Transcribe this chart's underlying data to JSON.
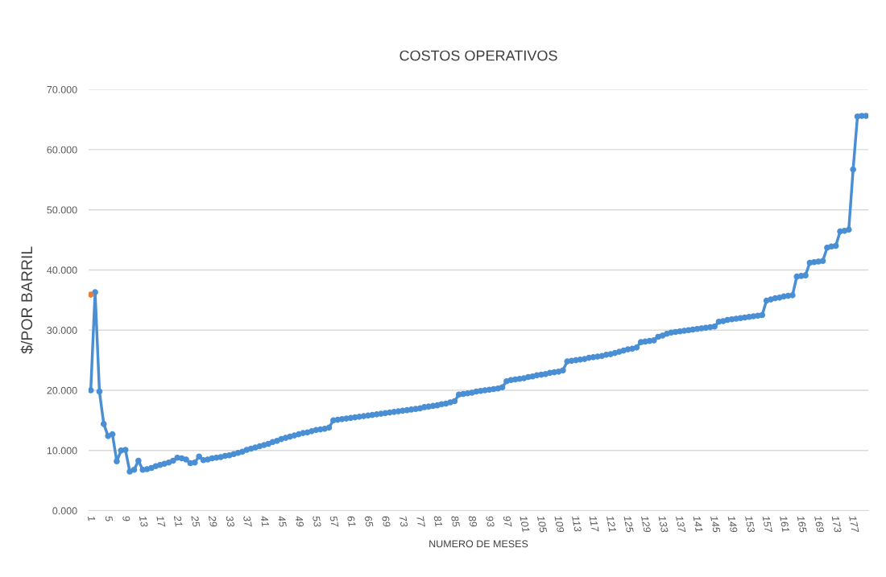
{
  "chart_data": {
    "type": "line",
    "title": "COSTOS OPERATIVOS",
    "xlabel": "NUMERO DE MESES",
    "ylabel": "$/POR BARRIL",
    "categories": [
      "1",
      null,
      null,
      null,
      "5",
      null,
      null,
      null,
      "9",
      null,
      null,
      null,
      "13",
      null,
      null,
      null,
      "17",
      null,
      null,
      null,
      "21",
      null,
      null,
      null,
      "25",
      null,
      null,
      null,
      "29",
      null,
      null,
      null,
      "33",
      null,
      null,
      null,
      "37",
      null,
      null,
      null,
      "41",
      null,
      null,
      null,
      "45",
      null,
      null,
      null,
      "49",
      null,
      null,
      null,
      "53",
      null,
      null,
      null,
      "57",
      null,
      null,
      null,
      "61",
      null,
      null,
      null,
      "65",
      null,
      null,
      null,
      "69",
      null,
      null,
      null,
      "73",
      null,
      null,
      null,
      "77",
      null,
      null,
      null,
      "81",
      null,
      null,
      null,
      "85",
      null,
      null,
      null,
      "89",
      null,
      null,
      null,
      "93",
      null,
      null,
      null,
      "97",
      null,
      null,
      null,
      "101",
      null,
      null,
      null,
      "105",
      null,
      null,
      null,
      "109",
      null,
      null,
      null,
      "113",
      null,
      null,
      null,
      "117",
      null,
      null,
      null,
      "121",
      null,
      null,
      null,
      "125",
      null,
      null,
      null,
      "129",
      null,
      null,
      null,
      "133",
      null,
      null,
      null,
      "137",
      null,
      null,
      null,
      "141",
      null,
      null,
      null,
      "145",
      null,
      null,
      null,
      "149",
      null,
      null,
      null,
      "153",
      null,
      null,
      null,
      "157",
      null,
      null,
      null,
      "161",
      null,
      null,
      null,
      "165",
      null,
      null,
      null,
      "169",
      null,
      null,
      null,
      "173",
      null,
      null,
      null,
      "177",
      null,
      null,
      null
    ],
    "series": [
      {
        "color": "#4a8fd4",
        "values": [
          20.0,
          36.3,
          19.8,
          14.4,
          12.4,
          12.7,
          8.2,
          10.0,
          10.1,
          6.5,
          6.8,
          8.3,
          6.8,
          6.9,
          7.1,
          7.4,
          7.6,
          7.8,
          8.0,
          8.3,
          8.8,
          8.7,
          8.5,
          7.9,
          8.0,
          9.0,
          8.4,
          8.5,
          8.7,
          8.8,
          8.9,
          9.1,
          9.2,
          9.4,
          9.6,
          9.8,
          10.1,
          10.3,
          10.5,
          10.7,
          10.9,
          11.1,
          11.4,
          11.6,
          11.9,
          12.1,
          12.3,
          12.5,
          12.7,
          12.9,
          13.0,
          13.2,
          13.4,
          13.5,
          13.6,
          13.8,
          15.0,
          15.1,
          15.2,
          15.3,
          15.4,
          15.5,
          15.6,
          15.7,
          15.8,
          15.9,
          16.0,
          16.1,
          16.2,
          16.3,
          16.4,
          16.5,
          16.6,
          16.7,
          16.8,
          16.9,
          17.0,
          17.2,
          17.3,
          17.4,
          17.5,
          17.7,
          17.8,
          18.0,
          18.2,
          19.3,
          19.4,
          19.5,
          19.6,
          19.8,
          19.9,
          20.0,
          20.1,
          20.2,
          20.3,
          20.5,
          21.5,
          21.7,
          21.8,
          21.9,
          22.0,
          22.2,
          22.3,
          22.5,
          22.6,
          22.7,
          22.9,
          23.0,
          23.1,
          23.3,
          24.8,
          24.9,
          25.0,
          25.1,
          25.2,
          25.4,
          25.5,
          25.6,
          25.7,
          25.9,
          26.0,
          26.2,
          26.4,
          26.6,
          26.8,
          26.9,
          27.1,
          28.0,
          28.1,
          28.2,
          28.3,
          28.9,
          29.1,
          29.4,
          29.6,
          29.7,
          29.8,
          29.9,
          30.0,
          30.1,
          30.2,
          30.3,
          30.4,
          30.5,
          30.6,
          31.4,
          31.5,
          31.7,
          31.8,
          31.9,
          32.0,
          32.1,
          32.2,
          32.3,
          32.4,
          32.5,
          34.9,
          35.1,
          35.3,
          35.4,
          35.6,
          35.7,
          35.8,
          38.9,
          39.0,
          39.1,
          41.2,
          41.3,
          41.4,
          41.5,
          43.7,
          43.9,
          44.0,
          46.4,
          46.5,
          46.7,
          56.7,
          65.5,
          65.6,
          65.6
        ]
      },
      {
        "color": "#ed7d31",
        "values": [
          35.9,
          null,
          null,
          null,
          null,
          null,
          null,
          null,
          null,
          null,
          null,
          null,
          null,
          null,
          null,
          null,
          null,
          null,
          null,
          null,
          null,
          null,
          null,
          null,
          null,
          null,
          null,
          null,
          null,
          null,
          null,
          null,
          null,
          null,
          null,
          null,
          null,
          null,
          null,
          null,
          null,
          null,
          null,
          null,
          null,
          null,
          null,
          null,
          null,
          null,
          null,
          null,
          null,
          null,
          null,
          null,
          null,
          null,
          null,
          null,
          null,
          null,
          null,
          null,
          null,
          null,
          null,
          null,
          null,
          null,
          null,
          null,
          null,
          null,
          null,
          null,
          null,
          null,
          null,
          null,
          null,
          null,
          null,
          null,
          null,
          null,
          null,
          null,
          null,
          null,
          null,
          null,
          null,
          null,
          null,
          null,
          null,
          null,
          null,
          null,
          null,
          null,
          null,
          null,
          null,
          null,
          null,
          null,
          null,
          null,
          null,
          null,
          null,
          null,
          null,
          null,
          null,
          null,
          null,
          null,
          null,
          null,
          null,
          null,
          null,
          null,
          null,
          null,
          null,
          null,
          null,
          null,
          null,
          null,
          null,
          null,
          null,
          null,
          null,
          null,
          null,
          null,
          null,
          null,
          null,
          null,
          null,
          null,
          null,
          null,
          null,
          null,
          null,
          null,
          null,
          null,
          null,
          null,
          null,
          null,
          null,
          null,
          null,
          null,
          null,
          null,
          null,
          null,
          null,
          null,
          null,
          null,
          null,
          null,
          null,
          null,
          null,
          null,
          null,
          null
        ]
      }
    ],
    "ylim": [
      0,
      70
    ],
    "yticks": [
      {
        "value": 0,
        "label": "0.000"
      },
      {
        "value": 10,
        "label": "10.000"
      },
      {
        "value": 20,
        "label": "20.000"
      },
      {
        "value": 30,
        "label": "30.000"
      },
      {
        "value": 40,
        "label": "40.000"
      },
      {
        "value": 50,
        "label": "50.000"
      },
      {
        "value": 60,
        "label": "60.000"
      },
      {
        "value": 70,
        "label": "70.000"
      }
    ],
    "grid": "y",
    "marker": "circle",
    "line_style": "solid"
  }
}
